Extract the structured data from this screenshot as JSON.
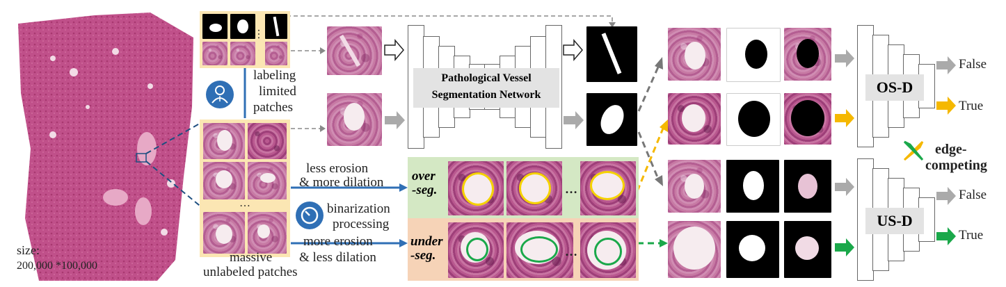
{
  "wsi": {
    "size_label": "size:",
    "size_value": "200,000 *100,000"
  },
  "labeling": {
    "line1": "labeling",
    "line2": "limited",
    "line3": "patches"
  },
  "unlabeled": {
    "line1": "massive",
    "line2": "unlabeled patches"
  },
  "network": {
    "line1": "Pathological Vessel",
    "line2": "Segmentation Network"
  },
  "over_branch": {
    "line1": "less erosion",
    "line2": "& more dilation",
    "tag_line1": "over",
    "tag_line2": "-seg."
  },
  "binarization": {
    "line1": "binarization",
    "line2": "processing"
  },
  "under_branch": {
    "line1": "more erosion",
    "line2": "& less dilation",
    "tag_line1": "under",
    "tag_line2": "-seg."
  },
  "discriminators": {
    "os": {
      "label": "OS-D",
      "false_label": "False",
      "true_label": "True"
    },
    "us": {
      "label": "US-D",
      "false_label": "False",
      "true_label": "True"
    }
  },
  "edge": {
    "line1": "edge-",
    "line2": "competing"
  },
  "ellipsis": "…",
  "colors": {
    "yellow": "#f5b800",
    "green": "#1aa84a",
    "blue": "#2f6fb5",
    "gray": "#aaaaaa",
    "over_bg": "#d4e8c4",
    "under_bg": "#f6d3b7",
    "patch_bg": "#fbe6b3"
  }
}
